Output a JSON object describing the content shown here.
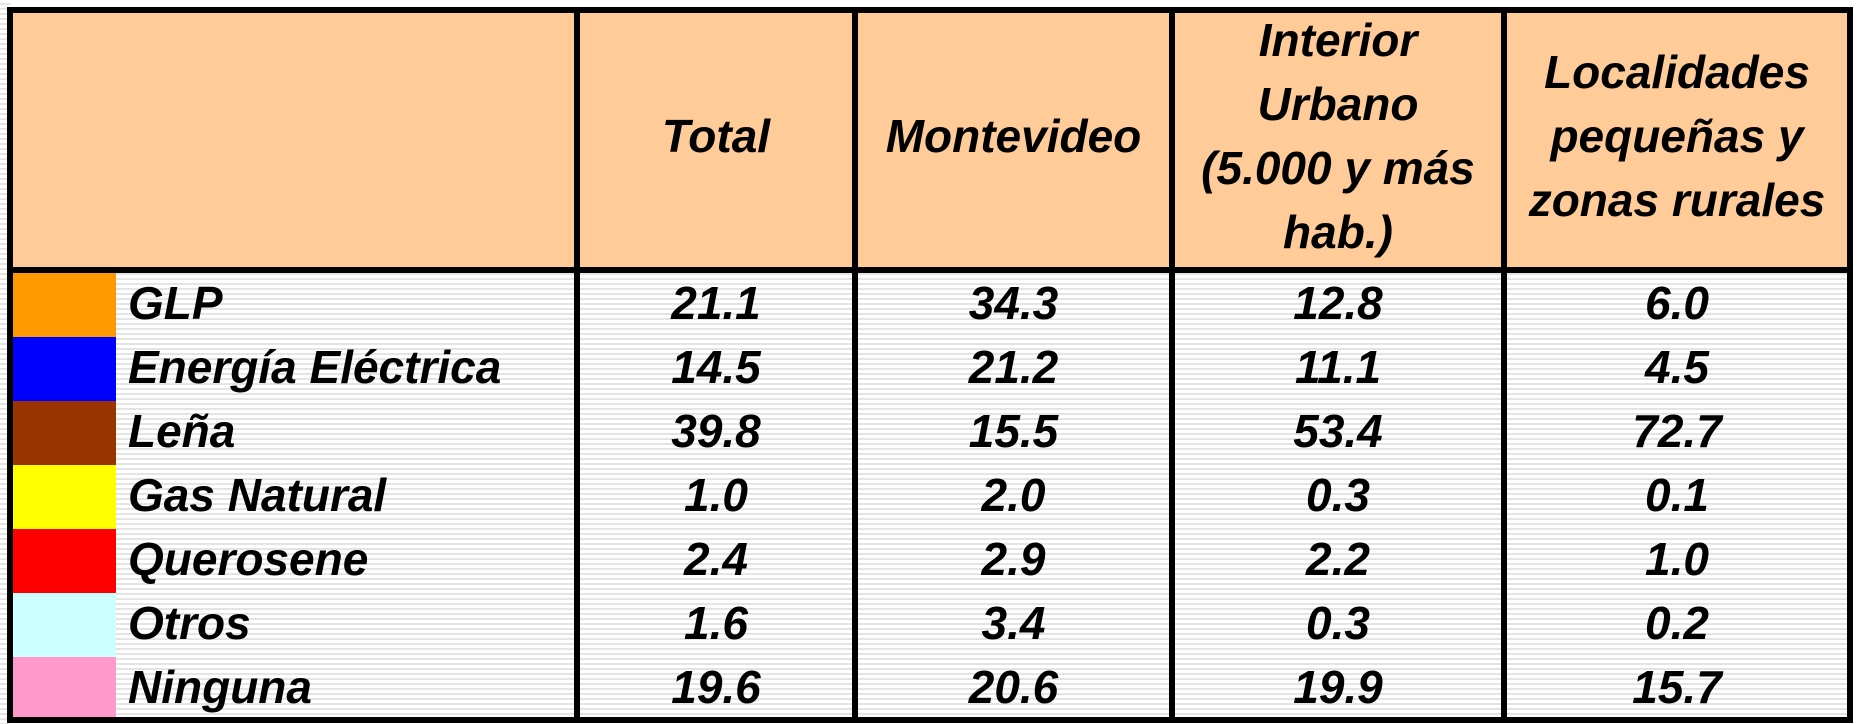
{
  "table": {
    "header": [
      [
        "Total"
      ],
      [
        "Montevideo"
      ],
      [
        "Interior",
        "Urbano",
        "(5.000 y más",
        "hab.)"
      ],
      [
        "Localidades",
        "pequeñas y",
        "zonas rurales"
      ]
    ],
    "rows": [
      {
        "color": "#ff9900",
        "label": "GLP",
        "values": [
          "21.1",
          "34.3",
          "12.8",
          "6.0"
        ]
      },
      {
        "color": "#0000ff",
        "label": "Energía Eléctrica",
        "values": [
          "14.5",
          "21.2",
          "11.1",
          "4.5"
        ]
      },
      {
        "color": "#993300",
        "label": "Leña",
        "values": [
          "39.8",
          "15.5",
          "53.4",
          "72.7"
        ]
      },
      {
        "color": "#ffff00",
        "label": "Gas Natural",
        "values": [
          "1.0",
          "2.0",
          "0.3",
          "0.1"
        ]
      },
      {
        "color": "#ff0000",
        "label": "Querosene",
        "values": [
          "2.4",
          "2.9",
          "2.2",
          "1.0"
        ]
      },
      {
        "color": "#ccffff",
        "label": "Otros",
        "values": [
          "1.6",
          "3.4",
          "0.3",
          "0.2"
        ]
      },
      {
        "color": "#ff99cc",
        "label": "Ninguna",
        "values": [
          "19.6",
          "20.6",
          "19.9",
          "15.7"
        ]
      }
    ]
  }
}
